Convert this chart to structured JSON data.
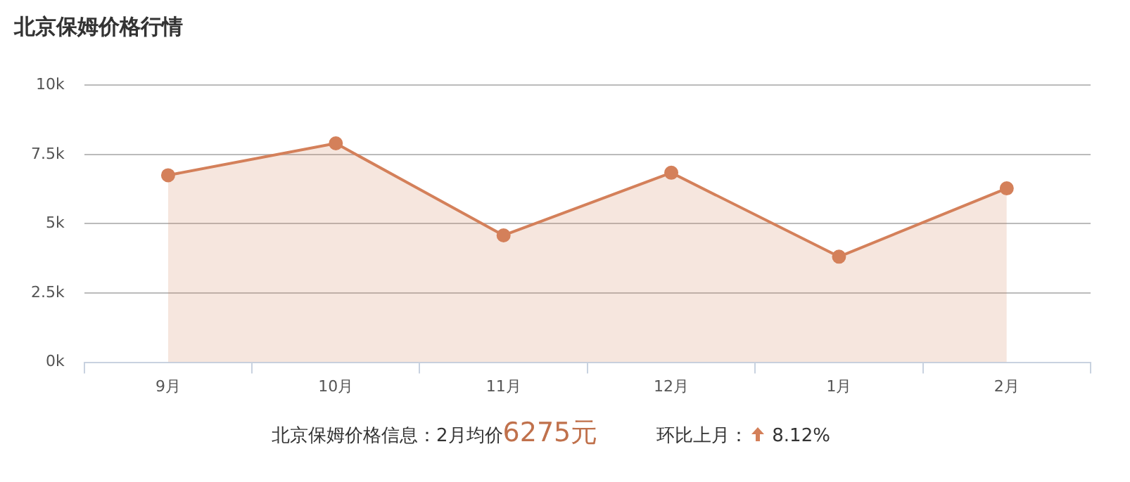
{
  "chart_data": {
    "type": "area",
    "title": "北京保姆价格行情",
    "categories": [
      "9月",
      "10月",
      "11月",
      "12月",
      "1月",
      "2月"
    ],
    "values": [
      6750,
      7900,
      4580,
      6840,
      3810,
      6275
    ],
    "color": "#d4805a",
    "ylim": [
      0,
      10000
    ],
    "yticks": [
      {
        "value": 0,
        "label": "0k"
      },
      {
        "value": 2500,
        "label": "2.5k"
      },
      {
        "value": 5000,
        "label": "5k"
      },
      {
        "value": 7500,
        "label": "7.5k"
      },
      {
        "value": 10000,
        "label": "10k"
      }
    ],
    "grid": "y",
    "marker": "circle",
    "legend": false,
    "annotations": [
      "北京保姆价格信息：2月均价",
      "6275元",
      "环比上月：",
      "8.12%"
    ]
  }
}
